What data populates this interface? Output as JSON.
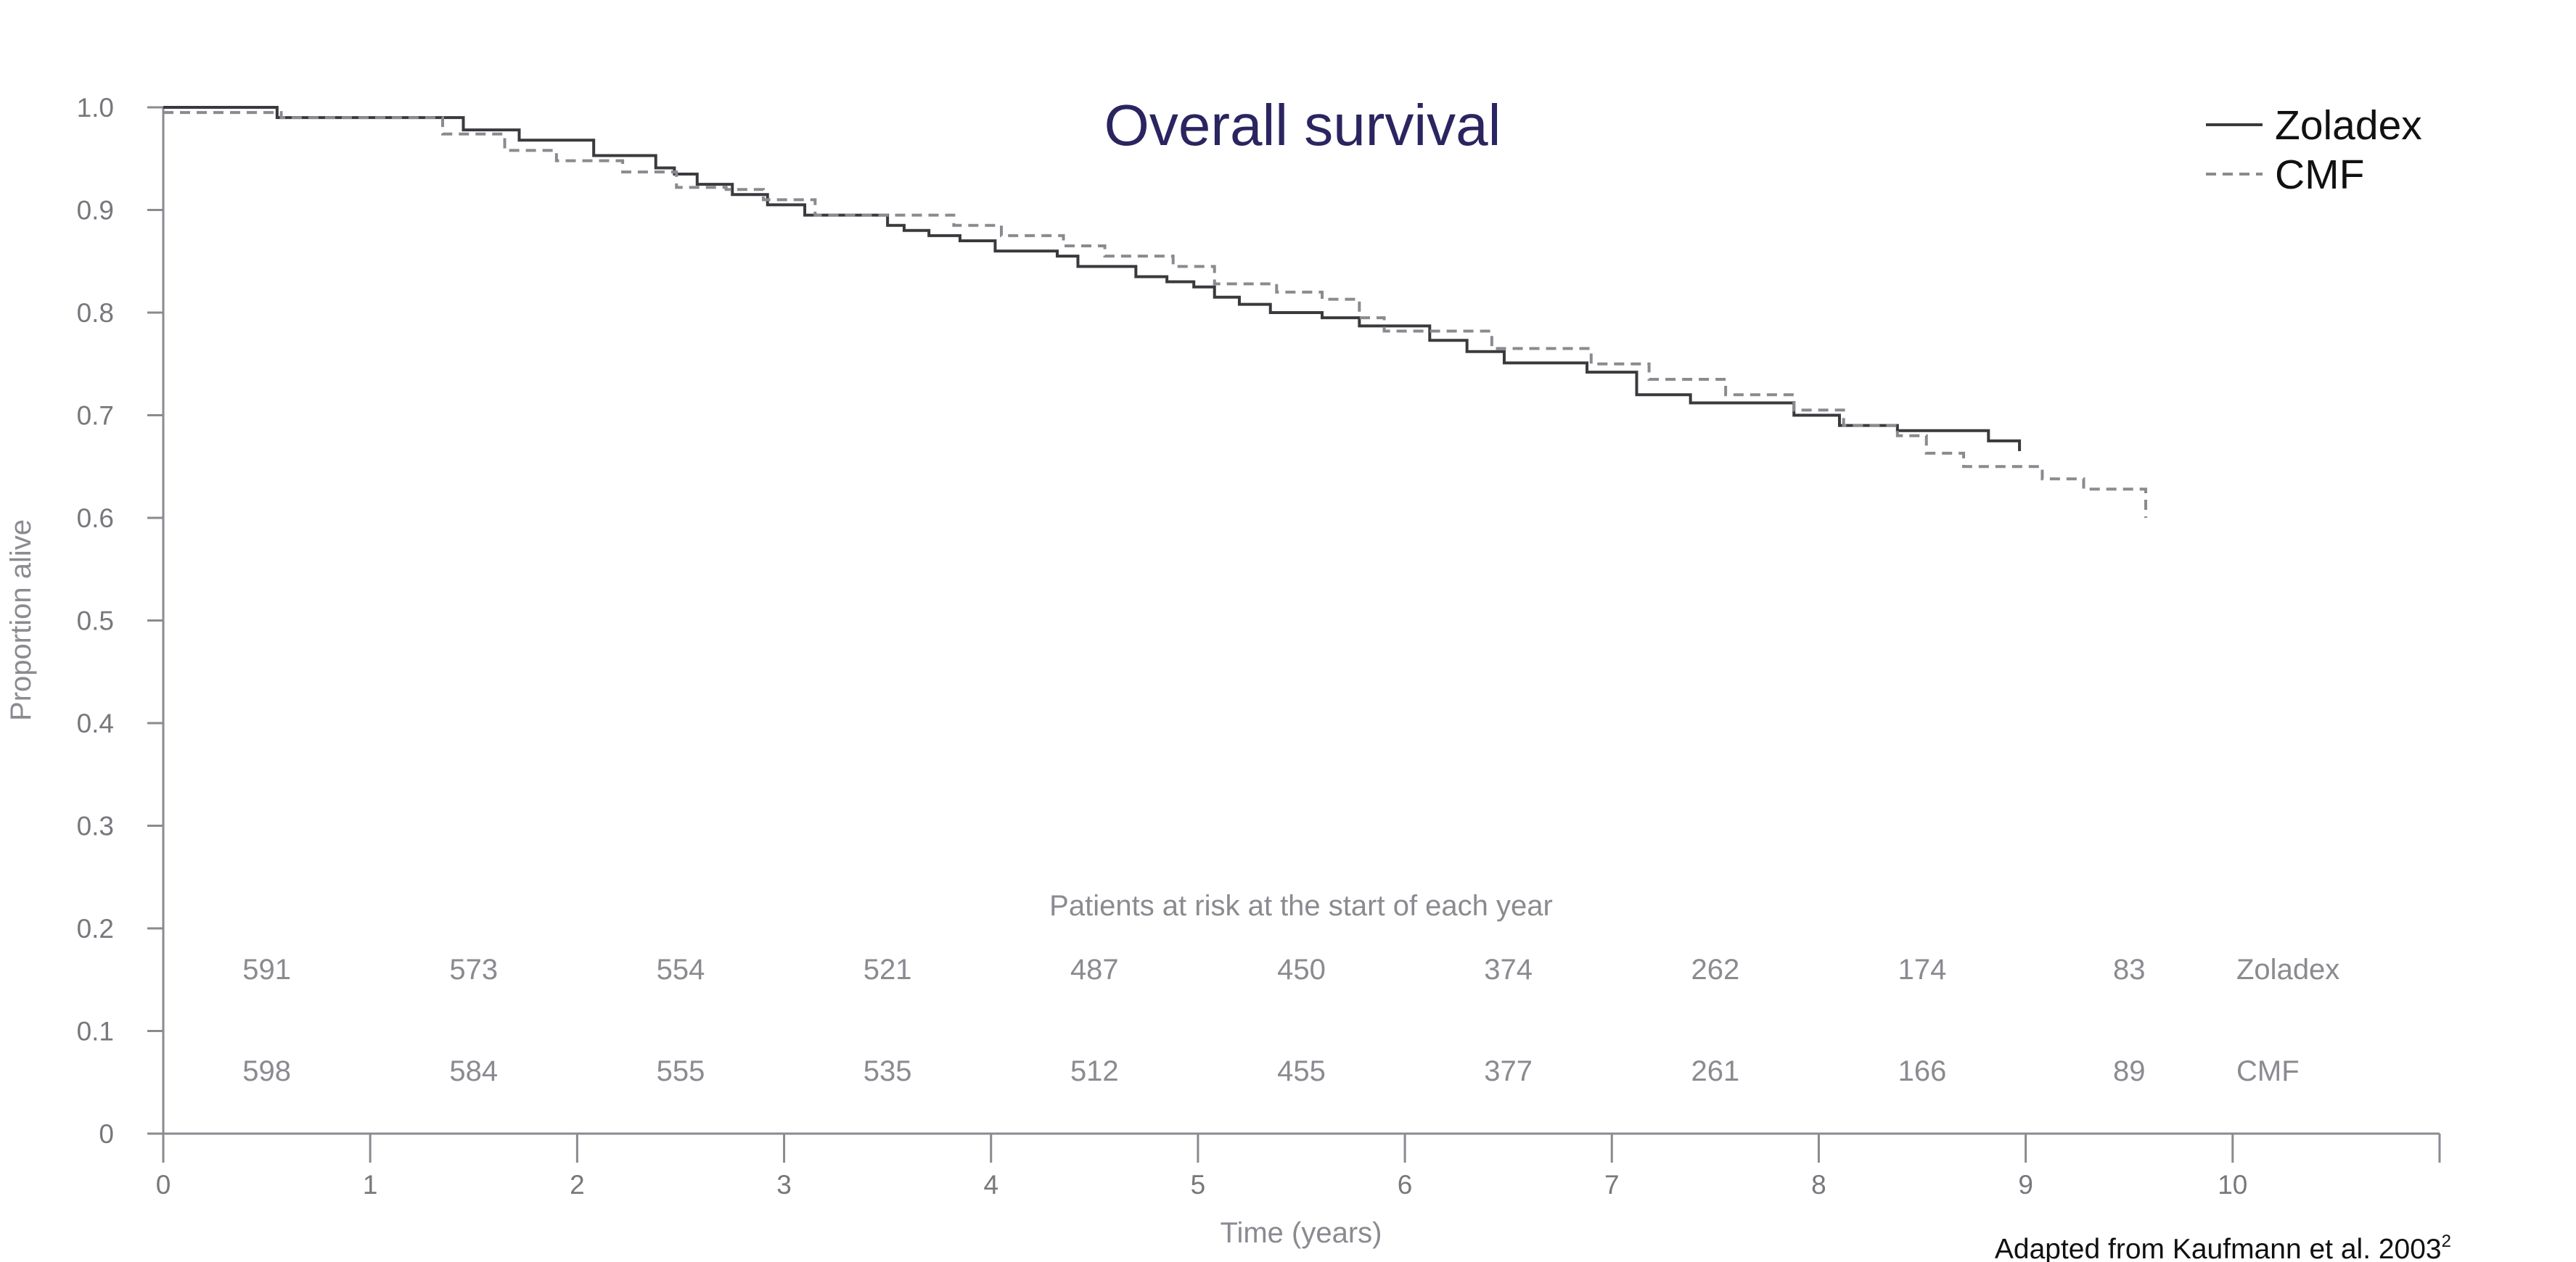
{
  "chart_data": {
    "type": "line",
    "title": "Overall survival",
    "xlabel": "Time (years)",
    "ylabel": "Proportion alive",
    "xlim": [
      0,
      11
    ],
    "ylim": [
      0,
      1.0
    ],
    "x_ticks": [
      "0",
      "1",
      "2",
      "3",
      "4",
      "5",
      "6",
      "7",
      "8",
      "9",
      "10"
    ],
    "y_ticks": [
      "0",
      "0.1",
      "0.2",
      "0.3",
      "0.4",
      "0.5",
      "0.6",
      "0.7",
      "0.8",
      "0.9",
      "1.0"
    ],
    "legend_position": "top-right",
    "series": [
      {
        "name": "Zoladex",
        "style": "solid",
        "color": "#3a3a3e",
        "x": [
          0,
          0.55,
          1.45,
          1.72,
          2.08,
          2.38,
          2.47,
          2.58,
          2.75,
          2.92,
          3.1,
          3.5,
          3.58,
          3.7,
          3.85,
          4.02,
          4.32,
          4.42,
          4.7,
          4.85,
          4.98,
          5.08,
          5.2,
          5.35,
          5.6,
          5.78,
          6.12,
          6.3,
          6.48,
          6.88,
          7.12,
          7.38,
          7.88,
          8.1,
          8.38,
          8.82,
          8.97
        ],
        "y": [
          1.0,
          0.99,
          0.978,
          0.968,
          0.953,
          0.941,
          0.935,
          0.925,
          0.915,
          0.905,
          0.895,
          0.885,
          0.88,
          0.875,
          0.87,
          0.86,
          0.855,
          0.845,
          0.835,
          0.83,
          0.825,
          0.815,
          0.808,
          0.8,
          0.795,
          0.787,
          0.773,
          0.762,
          0.751,
          0.742,
          0.72,
          0.712,
          0.7,
          0.69,
          0.685,
          0.675,
          0.665
        ]
      },
      {
        "name": "CMF",
        "style": "dashed",
        "color": "#8a8a90",
        "x": [
          0,
          0.57,
          1.35,
          1.65,
          1.9,
          2.22,
          2.48,
          2.72,
          2.9,
          3.15,
          3.55,
          3.82,
          4.05,
          4.35,
          4.55,
          4.88,
          5.08,
          5.38,
          5.6,
          5.78,
          5.9,
          6.25,
          6.42,
          6.9,
          7.18,
          7.55,
          7.88,
          8.12,
          8.38,
          8.52,
          8.7,
          9.08,
          9.28,
          9.58
        ],
        "y": [
          0.995,
          0.99,
          0.974,
          0.958,
          0.948,
          0.937,
          0.922,
          0.92,
          0.91,
          0.895,
          0.895,
          0.885,
          0.875,
          0.865,
          0.855,
          0.845,
          0.828,
          0.82,
          0.813,
          0.795,
          0.782,
          0.782,
          0.765,
          0.75,
          0.735,
          0.72,
          0.705,
          0.69,
          0.68,
          0.663,
          0.65,
          0.638,
          0.628,
          0.6
        ]
      }
    ]
  },
  "at_risk": {
    "title": "Patients at risk at the start of each year",
    "rows": [
      {
        "label": "Zoladex",
        "values": [
          "591",
          "573",
          "554",
          "521",
          "487",
          "450",
          "374",
          "262",
          "174",
          "83"
        ]
      },
      {
        "label": "CMF",
        "values": [
          "598",
          "584",
          "555",
          "535",
          "512",
          "455",
          "377",
          "261",
          "166",
          "89"
        ]
      }
    ]
  },
  "source_note": "Adapted from Kaufmann et al. 2003",
  "source_superscript": "2"
}
